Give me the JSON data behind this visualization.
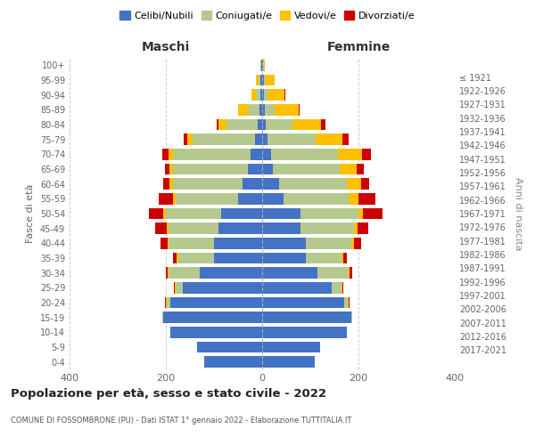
{
  "age_groups": [
    "0-4",
    "5-9",
    "10-14",
    "15-19",
    "20-24",
    "25-29",
    "30-34",
    "35-39",
    "40-44",
    "45-49",
    "50-54",
    "55-59",
    "60-64",
    "65-69",
    "70-74",
    "75-79",
    "80-84",
    "85-89",
    "90-94",
    "95-99",
    "100+"
  ],
  "birth_years": [
    "2017-2021",
    "2012-2016",
    "2007-2011",
    "2002-2006",
    "1997-2001",
    "1992-1996",
    "1987-1991",
    "1982-1986",
    "1977-1981",
    "1972-1976",
    "1967-1971",
    "1962-1966",
    "1957-1961",
    "1952-1956",
    "1947-1951",
    "1942-1946",
    "1937-1941",
    "1932-1936",
    "1927-1931",
    "1922-1926",
    "≤ 1921"
  ],
  "maschi": {
    "celibi": [
      120,
      135,
      190,
      205,
      190,
      165,
      130,
      100,
      100,
      90,
      85,
      50,
      40,
      30,
      25,
      15,
      10,
      5,
      3,
      3,
      2
    ],
    "coniugati": [
      0,
      0,
      0,
      2,
      8,
      15,
      65,
      75,
      95,
      105,
      115,
      130,
      145,
      155,
      160,
      130,
      65,
      25,
      10,
      5,
      1
    ],
    "vedovi": [
      0,
      0,
      0,
      0,
      2,
      2,
      2,
      2,
      2,
      3,
      5,
      5,
      8,
      8,
      10,
      10,
      15,
      20,
      10,
      5,
      1
    ],
    "divorziati": [
      0,
      0,
      0,
      0,
      2,
      2,
      3,
      8,
      15,
      25,
      30,
      30,
      12,
      8,
      12,
      8,
      5,
      0,
      0,
      0,
      0
    ]
  },
  "femmine": {
    "nubili": [
      110,
      120,
      175,
      185,
      170,
      145,
      115,
      90,
      90,
      80,
      80,
      45,
      35,
      22,
      18,
      12,
      8,
      5,
      3,
      3,
      2
    ],
    "coniugate": [
      0,
      0,
      0,
      2,
      8,
      20,
      65,
      75,
      95,
      110,
      120,
      135,
      140,
      140,
      140,
      100,
      55,
      20,
      8,
      3,
      1
    ],
    "vedove": [
      0,
      0,
      0,
      0,
      2,
      2,
      2,
      3,
      5,
      8,
      10,
      20,
      30,
      35,
      50,
      55,
      60,
      50,
      35,
      20,
      2
    ],
    "divorziate": [
      0,
      0,
      0,
      0,
      2,
      2,
      5,
      8,
      15,
      22,
      40,
      35,
      18,
      15,
      18,
      12,
      8,
      2,
      2,
      0,
      0
    ]
  },
  "colors": {
    "celibi": "#4472c4",
    "coniugati": "#b5c98e",
    "vedovi": "#ffc000",
    "divorziati": "#cc0000"
  },
  "title": "Popolazione per età, sesso e stato civile - 2022",
  "subtitle": "COMUNE DI FOSSOMBRONE (PU) - Dati ISTAT 1° gennaio 2022 - Elaborazione TUTTITALIA.IT",
  "xlabel_left": "Maschi",
  "xlabel_right": "Femmine",
  "ylabel_left": "Fasce di età",
  "ylabel_right": "Anni di nascita",
  "xlim": 400,
  "legend_labels": [
    "Celibi/Nubili",
    "Coniugati/e",
    "Vedovi/e",
    "Divorziati/e"
  ],
  "background_color": "#ffffff",
  "bar_height": 0.75
}
